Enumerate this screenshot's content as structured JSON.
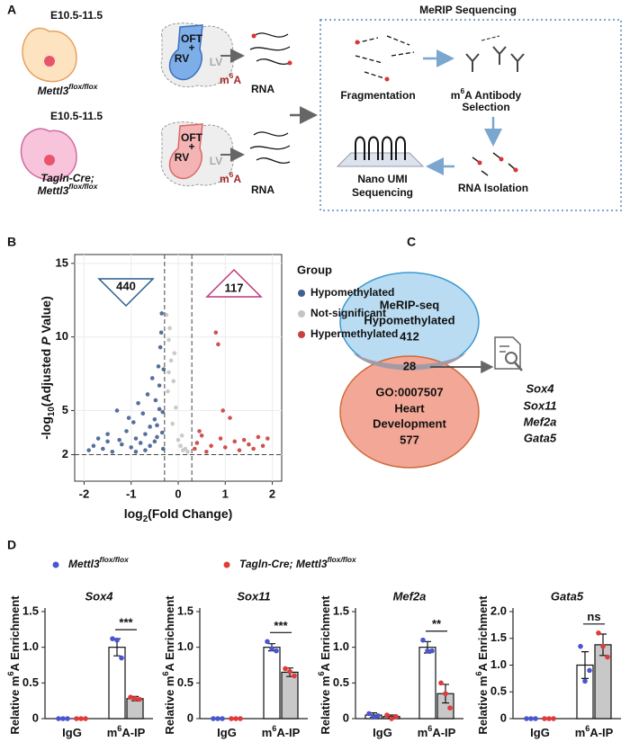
{
  "panel_labels": [
    "A",
    "B",
    "C",
    "D"
  ],
  "panel_a": {
    "title": "MeRIP Sequencing",
    "stage_1": "E10.5-11.5",
    "stage_2": "E10.5-11.5",
    "heart_1": [
      "OFT",
      "+",
      "RV",
      "LV"
    ],
    "heart_2": [
      "OFT",
      "+",
      "RV",
      "LV"
    ],
    "m6a_1": [
      {
        "text": "m"
      },
      {
        "text": "6",
        "sup": true
      },
      {
        "text": "A"
      }
    ],
    "m6a_2": [
      {
        "text": "m"
      },
      {
        "text": "6",
        "sup": true
      },
      {
        "text": "A"
      }
    ],
    "rna_1": "RNA",
    "rna_2": "RNA",
    "genotype_1": [
      {
        "text": "Mettl3"
      },
      {
        "text": "flox/flox",
        "sup": true
      }
    ],
    "genotype_2a": [
      {
        "text": "Tagln-Cre;"
      }
    ],
    "genotype_2b": [
      {
        "text": "Mettl3"
      },
      {
        "text": "flox/flox",
        "sup": true
      }
    ],
    "fragmentation": "Fragmentation",
    "antibody_1": [
      {
        "text": "m"
      },
      {
        "text": "6",
        "sup": true
      },
      {
        "text": "A Antibody"
      }
    ],
    "antibody_2": "Selection",
    "isolation": "RNA Isolation",
    "sequencing_1": "Nano UMI",
    "sequencing_2": "Sequencing"
  },
  "venn": {
    "set_1": [
      "MeRIP-seq",
      "Hypomethylated"
    ],
    "count_1": 412,
    "overlap": 28,
    "set_2": [
      "GO:0007507",
      "Heart",
      "Development"
    ],
    "count_2": 577,
    "genes": [
      "Sox4",
      "Sox11",
      "Mef2a",
      "Gata5"
    ]
  },
  "panel_d_legend": [
    {
      "name": [
        {
          "text": "Mettl3"
        },
        {
          "text": "flox/flox",
          "sup": true
        }
      ],
      "color": "#4a55d0"
    },
    {
      "name": [
        {
          "text": "Tagln-Cre; Mettl3"
        },
        {
          "text": "flox/flox",
          "sup": true
        }
      ],
      "color": "#e03a3a"
    }
  ],
  "chart_data": [
    {
      "type": "scatter",
      "x_label": [
        {
          "text": "log"
        },
        {
          "text": "2",
          "sub": true
        },
        {
          "text": "(Fold Change)"
        }
      ],
      "y_label": [
        {
          "text": "-log"
        },
        {
          "text": "10",
          "sub": true
        },
        {
          "text": "(Adjusted "
        },
        {
          "text": "P",
          "italic": true
        },
        {
          "text": " Value)"
        }
      ],
      "xlim": [
        -2.2,
        2.2
      ],
      "ylim": [
        0.2,
        15.6
      ],
      "xticks": [
        -2,
        -1,
        0,
        1,
        2
      ],
      "yticks": [
        2,
        5,
        10,
        15
      ],
      "grid": true,
      "vlines": [
        -0.29,
        0.29
      ],
      "hline": 2,
      "annotations": [
        440,
        117
      ],
      "legend_title": "Group",
      "series": [
        {
          "name": "Hypomethylated",
          "color": "#42608f",
          "x": [
            -1.9,
            -1.8,
            -1.7,
            -1.6,
            -1.5,
            -1.4,
            -1.3,
            -1.25,
            -1.2,
            -1.1,
            -1.0,
            -0.95,
            -0.9,
            -0.85,
            -0.8,
            -0.75,
            -0.7,
            -0.65,
            -0.6,
            -0.55,
            -0.5,
            -0.48,
            -0.45,
            -0.42,
            -0.4,
            -0.38,
            -0.35,
            -0.33,
            -0.32,
            -0.31,
            -1.05,
            -0.7,
            -0.6,
            -0.5,
            -0.45,
            -0.4,
            -1.5,
            -0.9,
            -0.36,
            -0.34
          ],
          "values": [
            2.3,
            2.6,
            3.1,
            2.4,
            3.4,
            2.2,
            5.0,
            3.0,
            2.7,
            3.6,
            2.5,
            4.2,
            3.1,
            5.5,
            2.8,
            4.8,
            3.4,
            6.1,
            2.6,
            7.2,
            4.4,
            5.7,
            3.2,
            8.0,
            6.7,
            9.3,
            11.6,
            4.9,
            2.4,
            7.8,
            4.5,
            2.3,
            3.9,
            2.9,
            4.0,
            5.1,
            2.9,
            2.2,
            10.3,
            3.5
          ]
        },
        {
          "name": "Not-significant",
          "color": "#c4c4c4",
          "x": [
            -0.25,
            -0.2,
            -0.15,
            -0.1,
            -0.05,
            0,
            0.05,
            0.1,
            0.15,
            0.2,
            -0.22,
            -0.12,
            -0.18,
            0.08,
            -0.08,
            -0.2
          ],
          "values": [
            11.5,
            9.8,
            8.4,
            7.0,
            5.2,
            3.0,
            2.6,
            2.3,
            2.4,
            2.2,
            6.3,
            4.1,
            10.6,
            3.3,
            8.9,
            7.6
          ]
        },
        {
          "name": "Hypermethylated",
          "color": "#c8413b",
          "x": [
            0.35,
            0.4,
            0.5,
            0.6,
            0.7,
            0.8,
            0.85,
            0.9,
            1.0,
            1.1,
            1.2,
            1.3,
            1.4,
            1.5,
            1.6,
            1.7,
            1.8,
            1.9,
            0.95,
            0.45
          ],
          "values": [
            2.4,
            2.8,
            3.3,
            2.2,
            2.6,
            10.3,
            9.5,
            3.1,
            2.5,
            4.5,
            2.9,
            2.3,
            3.0,
            2.7,
            2.4,
            3.2,
            2.6,
            3.1,
            5.0,
            3.6
          ]
        }
      ]
    },
    {
      "type": "bar",
      "title": "Sox4",
      "y_label": [
        {
          "text": "Relative m"
        },
        {
          "text": "6",
          "sup": true
        },
        {
          "text": "A Enrichment"
        }
      ],
      "categories": [
        [
          {
            "text": "IgG"
          }
        ],
        [
          {
            "text": "m"
          },
          {
            "text": "6",
            "sup": true
          },
          {
            "text": "A-IP"
          }
        ]
      ],
      "ylim": [
        0,
        1.5
      ],
      "yticks": [
        0,
        0.5,
        {
          "value": 1,
          "label": "1.0"
        },
        1.5
      ],
      "significance": "***",
      "series": [
        {
          "color": "#4a55d0",
          "fill": "#ffffff",
          "values": [
            0,
            1.0
          ],
          "errors": [
            0,
            0.12
          ],
          "points": [
            [
              0,
              0,
              0
            ],
            [
              1.12,
              1.1,
              0.85
            ]
          ]
        },
        {
          "color": "#e03a3a",
          "fill": "#c8c8c8",
          "values": [
            0,
            0.28
          ],
          "errors": [
            0,
            0.03
          ],
          "points": [
            [
              0,
              0,
              0
            ],
            [
              0.3,
              0.28,
              0.27
            ]
          ]
        }
      ]
    },
    {
      "type": "bar",
      "title": "Sox11",
      "y_label": [
        {
          "text": "Relative m"
        },
        {
          "text": "6",
          "sup": true
        },
        {
          "text": "A Enrichment"
        }
      ],
      "categories": [
        [
          {
            "text": "IgG"
          }
        ],
        [
          {
            "text": "m"
          },
          {
            "text": "6",
            "sup": true
          },
          {
            "text": "A-IP"
          }
        ]
      ],
      "ylim": [
        0,
        1.5
      ],
      "yticks": [
        0,
        0.5,
        {
          "value": 1,
          "label": "1.0"
        },
        1.5
      ],
      "significance": "***",
      "series": [
        {
          "color": "#4a55d0",
          "fill": "#ffffff",
          "values": [
            0,
            1.0
          ],
          "errors": [
            0,
            0.05
          ],
          "points": [
            [
              0,
              0,
              0
            ],
            [
              1.08,
              0.98,
              0.95
            ]
          ]
        },
        {
          "color": "#e03a3a",
          "fill": "#c8c8c8",
          "values": [
            0,
            0.65
          ],
          "errors": [
            0,
            0.06
          ],
          "points": [
            [
              0,
              0,
              0
            ],
            [
              0.7,
              0.66,
              0.6
            ]
          ]
        }
      ]
    },
    {
      "type": "bar",
      "title": "Mef2a",
      "y_label": [
        {
          "text": "Relative m"
        },
        {
          "text": "6",
          "sup": true
        },
        {
          "text": "A Enrichment"
        }
      ],
      "categories": [
        [
          {
            "text": "IgG"
          }
        ],
        [
          {
            "text": "m"
          },
          {
            "text": "6",
            "sup": true
          },
          {
            "text": "A-IP"
          }
        ]
      ],
      "ylim": [
        0,
        1.5
      ],
      "yticks": [
        0,
        0.5,
        {
          "value": 1,
          "label": "1.0"
        },
        1.5
      ],
      "significance": "**",
      "series": [
        {
          "color": "#4a55d0",
          "fill": "#ffffff",
          "values": [
            0.05,
            1.0
          ],
          "errors": [
            0.03,
            0.08
          ],
          "points": [
            [
              0.07,
              0.02,
              0.04
            ],
            [
              1.1,
              0.95,
              0.95
            ]
          ]
        },
        {
          "color": "#e03a3a",
          "fill": "#c8c8c8",
          "values": [
            0.03,
            0.35
          ],
          "errors": [
            0.02,
            0.13
          ],
          "points": [
            [
              0.05,
              0,
              0.03
            ],
            [
              0.5,
              0.35,
              0.15
            ]
          ]
        }
      ]
    },
    {
      "type": "bar",
      "title": "Gata5",
      "y_label": [
        {
          "text": "Relative m"
        },
        {
          "text": "6",
          "sup": true
        },
        {
          "text": "A Enrichment"
        }
      ],
      "categories": [
        [
          {
            "text": "IgG"
          }
        ],
        [
          {
            "text": "m"
          },
          {
            "text": "6",
            "sup": true
          },
          {
            "text": "A-IP"
          }
        ]
      ],
      "ylim": [
        0,
        2
      ],
      "yticks": [
        0,
        0.5,
        {
          "value": 1,
          "label": "1.0"
        },
        1.5,
        {
          "value": 2,
          "label": "2.0"
        }
      ],
      "significance": "ns",
      "series": [
        {
          "color": "#4a55d0",
          "fill": "#ffffff",
          "values": [
            0,
            1.0
          ],
          "errors": [
            0,
            0.25
          ],
          "points": [
            [
              0,
              0,
              0
            ],
            [
              1.35,
              0.7,
              0.9
            ]
          ]
        },
        {
          "color": "#e03a3a",
          "fill": "#c8c8c8",
          "values": [
            0,
            1.38
          ],
          "errors": [
            0,
            0.2
          ],
          "points": [
            [
              0,
              0,
              0
            ],
            [
              1.6,
              1.35,
              1.15
            ]
          ]
        }
      ]
    }
  ]
}
